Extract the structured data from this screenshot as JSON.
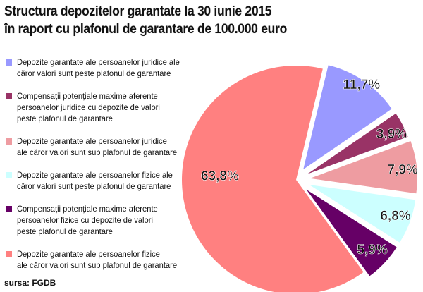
{
  "chart_data": {
    "type": "pie",
    "title": "Structura depozitelor garantate la 30 iunie 2015\nîn raport cu plafonul de garantare de 100.000 euro",
    "slices": [
      {
        "label": "Depozite garantate ale persoanelor juridice ale căror valori sunt peste plafonul de garantare",
        "value": 11.7,
        "display": "11,7%",
        "color": "#9999ff"
      },
      {
        "label": "Compensații potențiale maxime aferente persoanelor juridice cu depozite de valori peste plafonul de garantare",
        "value": 3.9,
        "display": "3,9%",
        "color": "#993366"
      },
      {
        "label": "Depozite garantate ale persoanelor juridice ale căror valori sunt sub plafonul de garantare",
        "value": 7.9,
        "display": "7,9%",
        "color": "#ee9ca1"
      },
      {
        "label": "Depozite garantate ale persoanelor fizice ale căror valori sunt peste plafonul de garantare",
        "value": 6.8,
        "display": "6,8%",
        "color": "#ccffff"
      },
      {
        "label": "Compensații potențiale maxime aferente persoanelor fizice cu depozite de valori peste plafonul de garantare",
        "value": 5.9,
        "display": "5,9%",
        "color": "#660066"
      },
      {
        "label": "Depozite garantate ale persoanelor fizice ale căror valori sunt sub plafonul de garantare",
        "value": 63.8,
        "display": "63,8%",
        "color": "#ff8080"
      }
    ],
    "legend_lines": [
      "Depozite garantate ale persoanelor juridice ale\ncăror valori sunt peste plafonul de garantare",
      "Compensații potențiale maxime aferente\npersoanelor juridice cu depozite de valori\npeste plafonul de garantare",
      "Depozite garantate ale persoanelor juridice\nale căror valori sunt sub plafonul de garantare",
      "Depozite garantate ale persoanelor fizice ale\ncăror valori sunt peste plafonul de garantare",
      "Compensații potențiale maxime aferente\npersoanelor fizice cu depozite de valori\npeste plafonul de garantare",
      "Depozite garantate ale persoanelor fizice\nale căror valori sunt sub plafonul de garantare"
    ],
    "legend_position": "left",
    "exploded": true
  },
  "source": "sursa: FGDB"
}
